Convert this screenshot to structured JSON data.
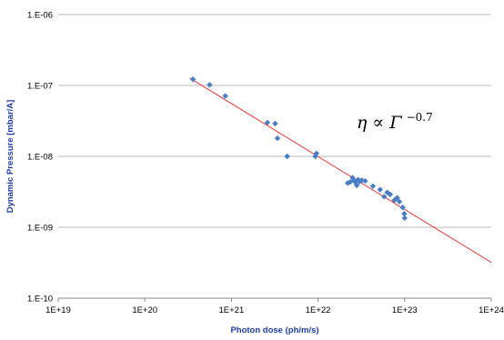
{
  "chart_data": {
    "type": "scatter",
    "title": "",
    "xlabel": "Photon dose (ph/m/s)",
    "ylabel": "Dynamic Pressure [mbar/A]",
    "x_scale": "log",
    "y_scale": "log",
    "xlim": [
      1e+19,
      1e+24
    ],
    "ylim": [
      1e-10,
      1e-06
    ],
    "grid": "horizontal",
    "legend": "none",
    "x_ticks": [
      {
        "value": 1e+19,
        "label": "1E+19"
      },
      {
        "value": 1e+20,
        "label": "1E+20"
      },
      {
        "value": 1e+21,
        "label": "1E+21"
      },
      {
        "value": 1e+22,
        "label": "1E+22"
      },
      {
        "value": 1e+23,
        "label": "1E+23"
      },
      {
        "value": 1e+24,
        "label": "1E+24"
      }
    ],
    "y_ticks": [
      {
        "value": 1e-06,
        "label": "1.E-06"
      },
      {
        "value": 1e-07,
        "label": "1.E-07"
      },
      {
        "value": 1e-08,
        "label": "1.E-08"
      },
      {
        "value": 1e-09,
        "label": "1.E-09"
      },
      {
        "value": 1e-10,
        "label": "1.E-10"
      }
    ],
    "colors": {
      "points": "#4a7ec4",
      "fit_line": "#e8251f",
      "grid": "#a6a6a6",
      "axis": "#888888",
      "axis_title": "#1f3fa6"
    },
    "series": [
      {
        "marker": "diamond",
        "points": [
          {
            "x": 3.6e+20,
            "y": 1.22e-07
          },
          {
            "x": 5.6e+20,
            "y": 1.02e-07
          },
          {
            "x": 8.5e+20,
            "y": 7.1e-08
          },
          {
            "x": 2.6e+21,
            "y": 3e-08
          },
          {
            "x": 3.2e+21,
            "y": 2.9e-08
          },
          {
            "x": 3.4e+21,
            "y": 1.8e-08
          },
          {
            "x": 4.4e+21,
            "y": 1e-08
          },
          {
            "x": 9.3e+21,
            "y": 1e-08
          },
          {
            "x": 9.6e+21,
            "y": 1.1e-08
          },
          {
            "x": 2.2e+22,
            "y": 4.2e-09
          },
          {
            "x": 2.35e+22,
            "y": 4.35e-09
          },
          {
            "x": 2.5e+22,
            "y": 5e-09
          },
          {
            "x": 2.6e+22,
            "y": 4.6e-09
          },
          {
            "x": 2.7e+22,
            "y": 4.3e-09
          },
          {
            "x": 2.8e+22,
            "y": 3.9e-09
          },
          {
            "x": 2.9e+22,
            "y": 4.7e-09
          },
          {
            "x": 3e+22,
            "y": 4.4e-09
          },
          {
            "x": 3.2e+22,
            "y": 4.6e-09
          },
          {
            "x": 3.5e+22,
            "y": 4.5e-09
          },
          {
            "x": 4.3e+22,
            "y": 3.8e-09
          },
          {
            "x": 5.2e+22,
            "y": 3.4e-09
          },
          {
            "x": 5.8e+22,
            "y": 2.7e-09
          },
          {
            "x": 6.3e+22,
            "y": 3.1e-09
          },
          {
            "x": 6.8e+22,
            "y": 2.9e-09
          },
          {
            "x": 7.6e+22,
            "y": 2.4e-09
          },
          {
            "x": 8.2e+22,
            "y": 2.6e-09
          },
          {
            "x": 8.7e+22,
            "y": 2.3e-09
          },
          {
            "x": 9.5e+22,
            "y": 1.9e-09
          },
          {
            "x": 9.9e+22,
            "y": 1.55e-09
          },
          {
            "x": 1e+23,
            "y": 1.35e-09
          }
        ]
      }
    ],
    "fit_line": {
      "points": [
        {
          "x": 3.3e+20,
          "y": 1.27e-07
        },
        {
          "x": 1e+24,
          "y": 3.2e-10
        }
      ]
    },
    "annotation": {
      "base": "η ∝ Γ",
      "exponent": "−0.7"
    }
  }
}
